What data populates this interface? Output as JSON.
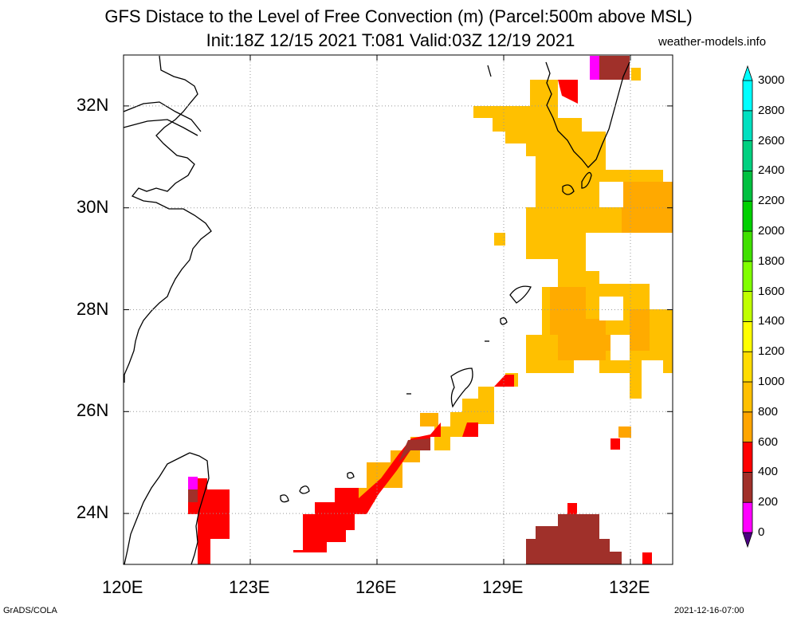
{
  "title_line1": "GFS Distace to the Level of Free Convection (m) (Parcel:500m above MSL)",
  "title_line2": "Init:18Z 12/15 2021 T:081 Valid:03Z 12/19 2021",
  "site": "weather-models.info",
  "footer_left": "GrADS/COLA",
  "footer_right": "2021-12-16-07:00",
  "map": {
    "lon_range": [
      120,
      133
    ],
    "lat_range": [
      23,
      33
    ],
    "lon_ticks": [
      {
        "value": 120,
        "label": "120E"
      },
      {
        "value": 123,
        "label": "123E"
      },
      {
        "value": 126,
        "label": "126E"
      },
      {
        "value": 129,
        "label": "129E"
      },
      {
        "value": 132,
        "label": "132E"
      }
    ],
    "lat_ticks": [
      {
        "value": 24,
        "label": "24N"
      },
      {
        "value": 26,
        "label": "26N"
      },
      {
        "value": 28,
        "label": "28N"
      },
      {
        "value": 30,
        "label": "30N"
      },
      {
        "value": 32,
        "label": "32N"
      }
    ],
    "grid": "dotted"
  },
  "colorbar": {
    "levels": [
      {
        "value": 0,
        "label": "0",
        "color": "#4b0082"
      },
      {
        "value": 200,
        "label": "200",
        "color": "#ff00ff"
      },
      {
        "value": 400,
        "label": "400",
        "color": "#a0302a"
      },
      {
        "value": 600,
        "label": "600",
        "color": "#ff0000"
      },
      {
        "value": 800,
        "label": "800",
        "color": "#ffa500"
      },
      {
        "value": 1000,
        "label": "1000",
        "color": "#ffc000"
      },
      {
        "value": 1200,
        "label": "1200",
        "color": "#ffdc00"
      },
      {
        "value": 1400,
        "label": "1400",
        "color": "#ffff00"
      },
      {
        "value": 1600,
        "label": "1600",
        "color": "#c0ff00"
      },
      {
        "value": 1800,
        "label": "1800",
        "color": "#80ff00"
      },
      {
        "value": 2000,
        "label": "2000",
        "color": "#40e000"
      },
      {
        "value": 2200,
        "label": "2200",
        "color": "#00d000"
      },
      {
        "value": 2400,
        "label": "2400",
        "color": "#00c040"
      },
      {
        "value": 2600,
        "label": "2600",
        "color": "#00d080"
      },
      {
        "value": 2800,
        "label": "2800",
        "color": "#00e0c0"
      },
      {
        "value": 3000,
        "label": "3000",
        "color": "#00ffff"
      }
    ]
  }
}
